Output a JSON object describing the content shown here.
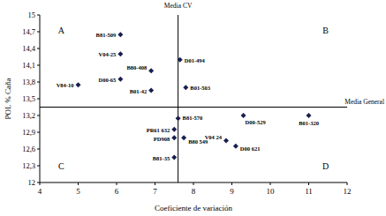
{
  "chart_data": {
    "type": "scatter",
    "x_label": "Coeficiente de variación",
    "y_label": "POL % Caña",
    "point_labels": [
      "B81-509",
      "V04-25",
      "B80-408",
      "D01-494",
      "D00-65",
      "V84-10",
      "B01-42",
      "B01-503",
      "B81-570",
      "D00-529",
      "B01-320",
      "PR61 632",
      "PD908",
      "B80 549",
      "V04 24",
      "D00 621",
      "B81-35"
    ],
    "x": [
      6.1,
      6.1,
      6.9,
      7.65,
      6.1,
      5.0,
      6.9,
      7.8,
      7.6,
      9.3,
      11.0,
      7.5,
      7.5,
      7.75,
      8.85,
      9.1,
      7.5
    ],
    "values": [
      14.65,
      14.3,
      14.0,
      14.2,
      13.85,
      13.75,
      13.65,
      13.7,
      13.15,
      13.2,
      13.2,
      12.95,
      12.8,
      12.8,
      12.75,
      12.65,
      12.45
    ],
    "color": "#1a1f4e",
    "marker": "diamond",
    "xlim": [
      4,
      12
    ],
    "xticks": [
      4,
      5,
      6,
      7,
      8,
      9,
      10,
      11,
      12
    ],
    "ylim": [
      12,
      15
    ],
    "yticks": [
      {
        "value": 12,
        "label": "12"
      },
      {
        "value": 12.3,
        "label": "12,3"
      },
      {
        "value": 12.6,
        "label": "12,6"
      },
      {
        "value": 12.9,
        "label": "12,9"
      },
      {
        "value": 13.2,
        "label": "13,2"
      },
      {
        "value": 13.5,
        "label": "13,5"
      },
      {
        "value": 13.8,
        "label": "13,8"
      },
      {
        "value": 14.1,
        "label": "14,1"
      },
      {
        "value": 14.4,
        "label": "14,4"
      },
      {
        "value": 14.7,
        "label": "14,7"
      },
      {
        "value": 15,
        "label": "15"
      }
    ],
    "reference_lines": [
      {
        "axis": "x",
        "value": 7.6,
        "label": "Media CV"
      },
      {
        "axis": "y",
        "value": 13.35,
        "label": "Media General"
      }
    ],
    "annotations": [
      "A",
      "B",
      "C",
      "D"
    ],
    "grid": false
  }
}
